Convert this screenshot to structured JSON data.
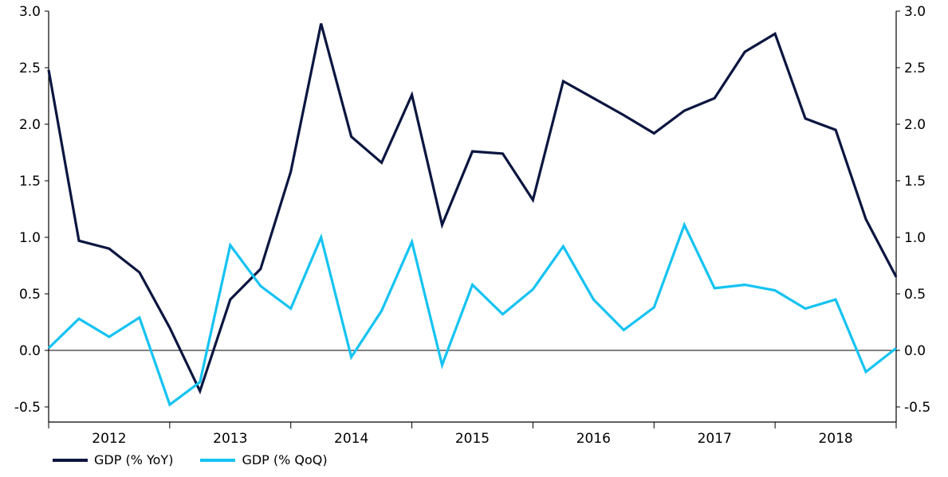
{
  "chart_data": {
    "type": "line",
    "title": "",
    "xlabel": "",
    "ylabel": "",
    "ylim": [
      -0.5,
      3.0
    ],
    "yticks": [
      "3.0",
      "2.5",
      "2.0",
      "1.5",
      "1.0",
      "0.5",
      "0.0",
      "-0.5"
    ],
    "y_axis_right": true,
    "year_labels": [
      "2012",
      "2013",
      "2014",
      "2015",
      "2016",
      "2017",
      "2018"
    ],
    "legend_position": "bottom-left",
    "x": [
      "2011Q4",
      "2012Q1",
      "2012Q2",
      "2012Q3",
      "2012Q4",
      "2013Q1",
      "2013Q2",
      "2013Q3",
      "2013Q4",
      "2014Q1",
      "2014Q2",
      "2014Q3",
      "2014Q4",
      "2015Q1",
      "2015Q2",
      "2015Q3",
      "2015Q4",
      "2016Q1",
      "2016Q2",
      "2016Q3",
      "2016Q4",
      "2017Q1",
      "2017Q2",
      "2017Q3",
      "2017Q4",
      "2018Q1",
      "2018Q2",
      "2018Q3",
      "2018Q4"
    ],
    "series": [
      {
        "name": "GDP (% YoY)",
        "color": "#0b1640",
        "values": [
          2.48,
          0.97,
          0.9,
          0.69,
          0.2,
          -0.36,
          0.45,
          0.72,
          1.58,
          2.89,
          1.89,
          1.66,
          2.26,
          1.11,
          1.76,
          1.74,
          1.33,
          2.38,
          2.23,
          2.08,
          1.92,
          2.12,
          2.23,
          2.64,
          2.8,
          2.05,
          1.95,
          1.16,
          0.65
        ]
      },
      {
        "name": "GDP (% QoQ)",
        "color": "#15c3f2",
        "values": [
          0.02,
          0.28,
          0.12,
          0.29,
          -0.48,
          -0.28,
          0.93,
          0.57,
          0.37,
          1.0,
          -0.06,
          0.35,
          0.96,
          -0.13,
          0.58,
          0.32,
          0.54,
          0.92,
          0.45,
          0.18,
          0.38,
          1.11,
          0.55,
          0.58,
          0.53,
          0.37,
          0.45,
          -0.19,
          0.02
        ]
      }
    ]
  }
}
